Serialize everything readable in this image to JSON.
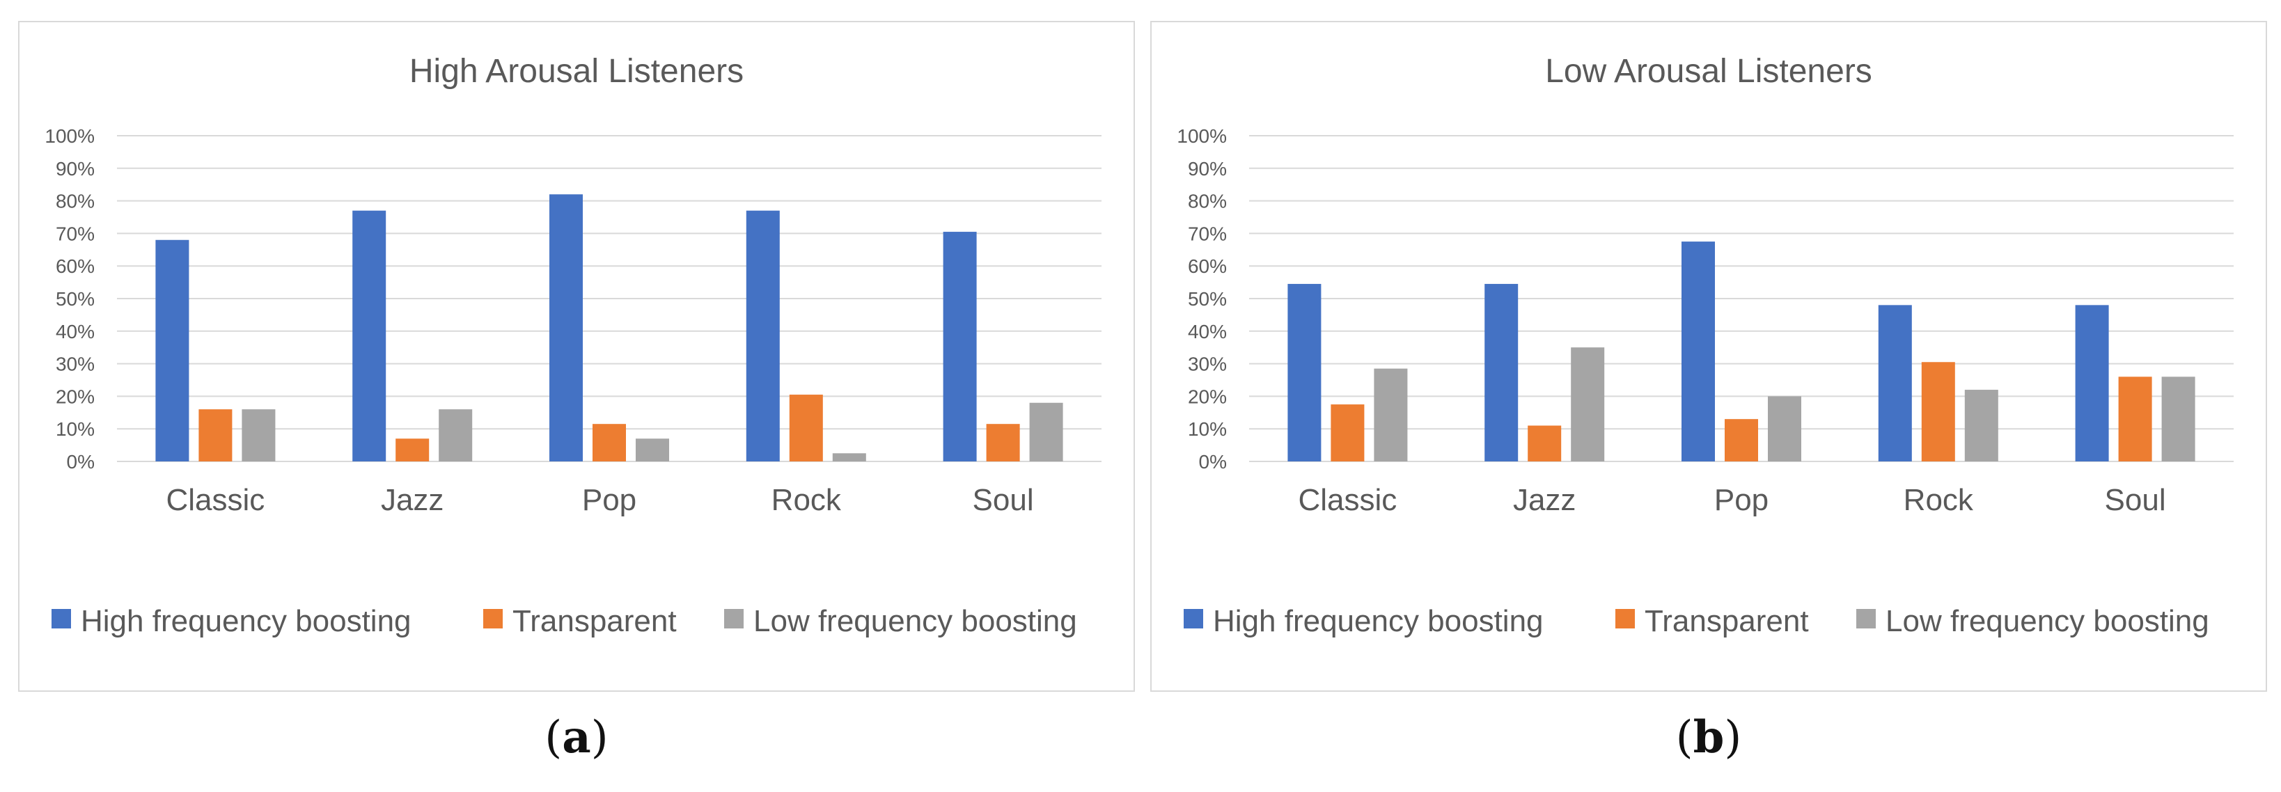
{
  "colors": {
    "high_frequency_boosting": "#4472C4",
    "transparent": "#ED7D31",
    "low_frequency_boosting": "#A5A5A5",
    "gridline": "#D9D9D9",
    "text": "#595959",
    "border": "#D9D9D9"
  },
  "captions": {
    "a": "a",
    "b": "b"
  },
  "chart_data": [
    {
      "type": "bar",
      "title": "High Arousal Listeners",
      "categories": [
        "Classic",
        "Jazz",
        "Pop",
        "Rock",
        "Soul"
      ],
      "series": [
        {
          "name": "High frequency boosting",
          "values": [
            68,
            77,
            82,
            77,
            70.5
          ]
        },
        {
          "name": "Transparent",
          "values": [
            16,
            7,
            11.5,
            20.5,
            11.5
          ]
        },
        {
          "name": "Low frequency boosting",
          "values": [
            16,
            16,
            7,
            2.5,
            18
          ]
        }
      ],
      "yticks": [
        "0%",
        "10%",
        "20%",
        "30%",
        "40%",
        "50%",
        "60%",
        "70%",
        "80%",
        "90%",
        "100%"
      ],
      "ylim": [
        0,
        100
      ],
      "grid": true,
      "legend": "bottom"
    },
    {
      "type": "bar",
      "title": "Low Arousal Listeners",
      "categories": [
        "Classic",
        "Jazz",
        "Pop",
        "Rock",
        "Soul"
      ],
      "series": [
        {
          "name": "High frequency boosting",
          "values": [
            54.5,
            54.5,
            67.5,
            48,
            48
          ]
        },
        {
          "name": "Transparent",
          "values": [
            17.5,
            11,
            13,
            30.5,
            26
          ]
        },
        {
          "name": "Low frequency boosting",
          "values": [
            28.5,
            35,
            20,
            22,
            26
          ]
        }
      ],
      "yticks": [
        "0%",
        "10%",
        "20%",
        "30%",
        "40%",
        "50%",
        "60%",
        "70%",
        "80%",
        "90%",
        "100%"
      ],
      "ylim": [
        0,
        100
      ],
      "grid": true,
      "legend": "bottom"
    }
  ]
}
